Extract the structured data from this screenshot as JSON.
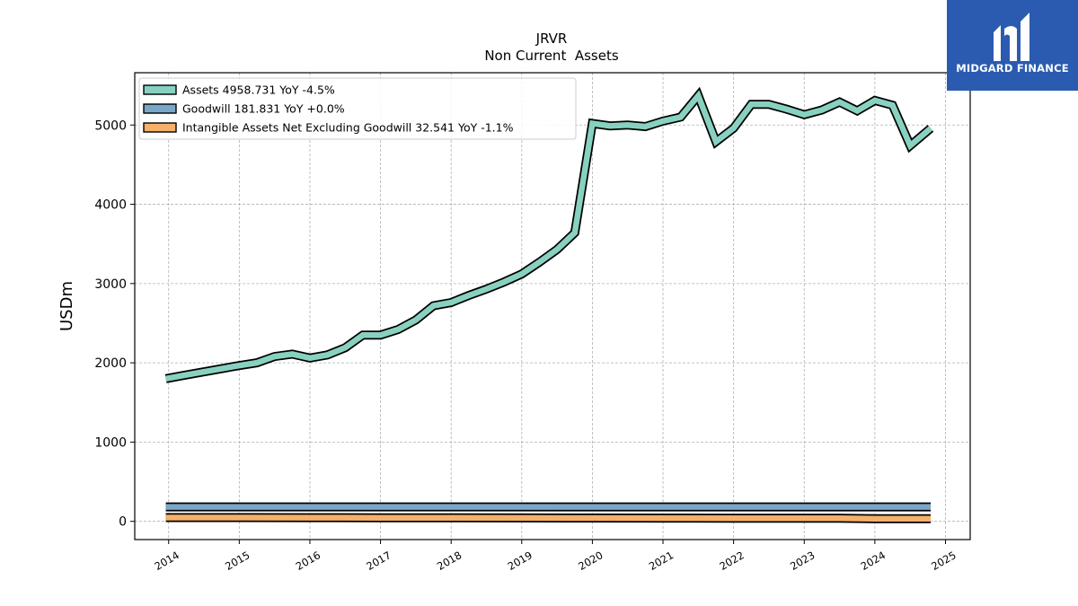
{
  "brand": {
    "name": "MIDGARD FINANCE",
    "icon": "midgard-logo-icon",
    "bg_color": "#2a5bb0"
  },
  "chart_data": {
    "type": "area",
    "title": "JRVR",
    "subtitle": "Non Current  Assets",
    "ylabel": "USDm",
    "xlabel": "",
    "ylim": [
      -230,
      5660
    ],
    "xlim": [
      2013.52,
      2025.35
    ],
    "yticks": [
      0,
      1000,
      2000,
      3000,
      4000,
      5000
    ],
    "xticks": [
      "2014",
      "2015",
      "2016",
      "2017",
      "2018",
      "2019",
      "2020",
      "2021",
      "2022",
      "2023",
      "2024",
      "2025"
    ],
    "grid": true,
    "legend_position": "top-left",
    "series": [
      {
        "name": "Assets",
        "legend": "Assets  4958.731 YoY -4.5%",
        "color": "#88d1c1",
        "x": [
          2013.96,
          2014.21,
          2014.46,
          2014.71,
          2014.96,
          2015.25,
          2015.5,
          2015.75,
          2016.0,
          2016.25,
          2016.5,
          2016.75,
          2017.0,
          2017.25,
          2017.5,
          2017.75,
          2018.0,
          2018.25,
          2018.5,
          2018.75,
          2019.0,
          2019.25,
          2019.5,
          2019.75,
          2020.0,
          2020.25,
          2020.5,
          2020.75,
          2021.0,
          2021.25,
          2021.5,
          2021.75,
          2022.0,
          2022.25,
          2022.5,
          2022.75,
          2023.0,
          2023.25,
          2023.5,
          2023.75,
          2024.0,
          2024.25,
          2024.5,
          2024.79
        ],
        "values": [
          1800,
          1840,
          1880,
          1920,
          1960,
          2000,
          2080,
          2110,
          2060,
          2100,
          2190,
          2350,
          2350,
          2420,
          2540,
          2720,
          2760,
          2850,
          2930,
          3020,
          3120,
          3270,
          3430,
          3640,
          5020,
          4990,
          5000,
          4980,
          5050,
          5100,
          5370,
          4790,
          4960,
          5260,
          5260,
          5200,
          5130,
          5190,
          5290,
          5180,
          5310,
          5250,
          4740,
          4959
        ]
      },
      {
        "name": "Goodwill",
        "legend": "Goodwill  181.831 YoY +0.0%",
        "color": "#7aa6c8",
        "x": [
          2013.96,
          2024.79
        ],
        "values": [
          182,
          182
        ]
      },
      {
        "name": "Intangible Assets Net Excluding Goodwill",
        "legend": "Intangible Assets Net Excluding Goodwill  32.541 YoY -1.1%",
        "color": "#f5b06a",
        "x": [
          2013.96,
          2015.0,
          2016.0,
          2017.0,
          2018.0,
          2019.0,
          2020.0,
          2021.0,
          2022.0,
          2023.0,
          2023.5,
          2024.0,
          2024.5,
          2024.79
        ],
        "values": [
          48,
          47,
          46,
          45,
          44,
          43,
          42,
          41,
          40,
          39,
          38,
          34,
          33,
          32.5
        ]
      }
    ]
  }
}
